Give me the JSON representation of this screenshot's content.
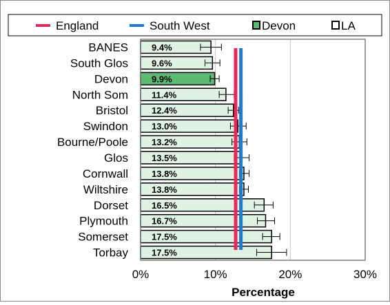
{
  "chart_data": {
    "type": "bar",
    "orientation": "horizontal",
    "title": "",
    "xlabel": "Percentage",
    "ylabel": "",
    "xlim": [
      0,
      30
    ],
    "x_ticks": [
      0,
      10,
      20,
      30
    ],
    "x_tick_labels": [
      "0%",
      "10%",
      "20%",
      "30%"
    ],
    "grid": true,
    "legend_position": "top",
    "legend": [
      {
        "label": "England",
        "kind": "line",
        "color": "#e8275a"
      },
      {
        "label": "South West",
        "kind": "line",
        "color": "#1f7bd0"
      },
      {
        "label": "Devon",
        "kind": "box",
        "color": "#5cba73"
      },
      {
        "label": "LA",
        "kind": "box",
        "color": "#ffffff"
      }
    ],
    "categories": [
      "BANES",
      "South Glos",
      "Devon",
      "North Som",
      "Bristol",
      "Swindon",
      "Bourne/Poole",
      "Glos",
      "Cornwall",
      "Wiltshire",
      "Dorset",
      "Plymouth",
      "Somerset",
      "Torbay"
    ],
    "values": [
      9.4,
      9.6,
      9.9,
      11.4,
      12.4,
      13.0,
      13.2,
      13.5,
      13.8,
      13.8,
      16.5,
      16.7,
      17.5,
      17.5
    ],
    "value_labels": [
      "9.4%",
      "9.6%",
      "9.9%",
      "11.4%",
      "12.4%",
      "13.0%",
      "13.2%",
      "13.5%",
      "13.8%",
      "13.8%",
      "16.5%",
      "16.7%",
      "17.5%",
      "17.5%"
    ],
    "error_low": [
      8.0,
      8.6,
      9.3,
      10.5,
      11.7,
      12.0,
      12.2,
      12.5,
      13.2,
      13.2,
      15.2,
      15.6,
      16.3,
      15.5
    ],
    "error_high": [
      10.8,
      10.6,
      10.5,
      12.5,
      13.1,
      14.1,
      14.2,
      14.5,
      14.5,
      14.4,
      17.7,
      17.9,
      18.6,
      19.5
    ],
    "highlight_category": "Devon",
    "bar_color": "#dff2e3",
    "highlight_color": "#5cba73",
    "reference_lines": [
      {
        "name": "England",
        "value": 12.7,
        "color": "#e8275a"
      },
      {
        "name": "South West",
        "value": 13.4,
        "color": "#1f7bd0"
      }
    ]
  }
}
